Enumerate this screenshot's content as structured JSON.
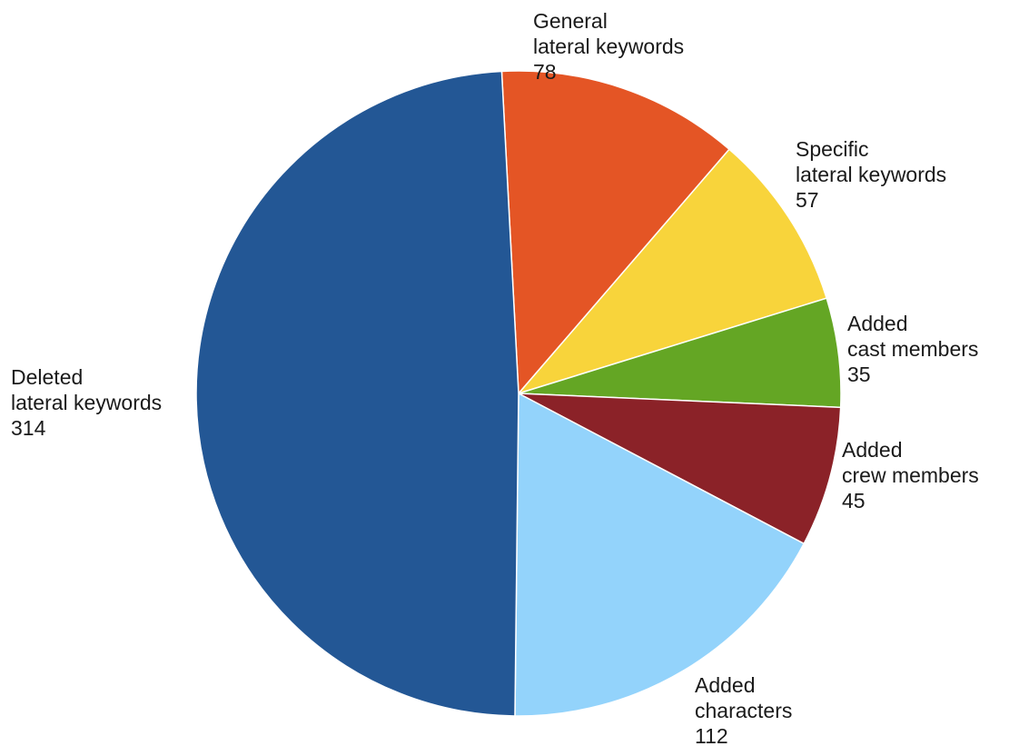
{
  "chart_data": {
    "type": "pie",
    "title": "",
    "slices": [
      {
        "label_lines": [
          "General",
          "lateral keywords"
        ],
        "value": 78,
        "color": "#E45525"
      },
      {
        "label_lines": [
          "Specific",
          "lateral keywords"
        ],
        "value": 57,
        "color": "#F8D43B"
      },
      {
        "label_lines": [
          "Added",
          "cast members"
        ],
        "value": 35,
        "color": "#64A624"
      },
      {
        "label_lines": [
          "Added",
          "crew members"
        ],
        "value": 45,
        "color": "#8B2228"
      },
      {
        "label_lines": [
          "Added",
          "characters"
        ],
        "value": 112,
        "color": "#93D3FB"
      },
      {
        "label_lines": [
          "Deleted",
          "lateral keywords"
        ],
        "value": 314,
        "color": "#235795"
      }
    ],
    "start_angle_deg": -3,
    "direction": "clockwise"
  }
}
